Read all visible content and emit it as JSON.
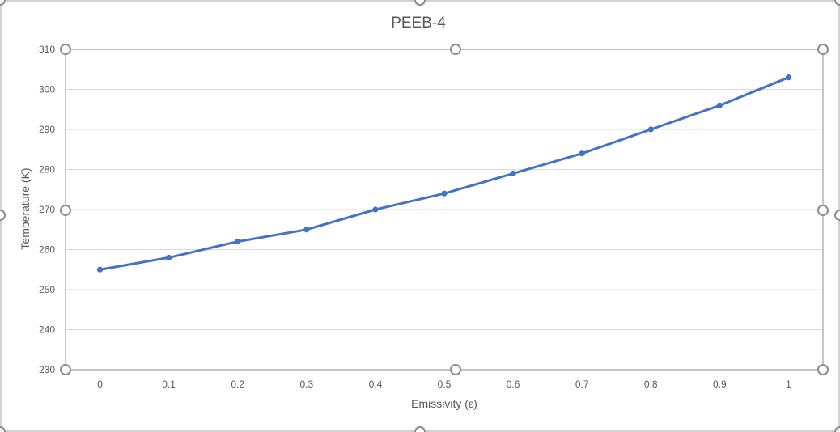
{
  "chart_data": {
    "type": "line",
    "title": "PEEB-4",
    "xlabel": "Emissivity (ε)",
    "ylabel": "Temperature (K)",
    "x": [
      0,
      0.1,
      0.2,
      0.3,
      0.4,
      0.5,
      0.6,
      0.7,
      0.8,
      0.9,
      1
    ],
    "x_tick_labels": [
      "0",
      "0.1",
      "0.2",
      "0.3",
      "0.4",
      "0.5",
      "0.6",
      "0.7",
      "0.8",
      "0.9",
      "1"
    ],
    "series": [
      {
        "values": [
          255,
          258,
          262,
          265,
          270,
          274,
          279,
          284,
          290,
          296,
          303
        ]
      }
    ],
    "ylim": [
      230,
      310
    ],
    "y_ticks": [
      230,
      240,
      250,
      260,
      270,
      280,
      290,
      300,
      310
    ],
    "grid": true,
    "legend": "none",
    "colors": {
      "series": "#4472c4",
      "grid": "#d9d9d9",
      "text": "#595959",
      "handle": "#8c8c8c"
    }
  }
}
